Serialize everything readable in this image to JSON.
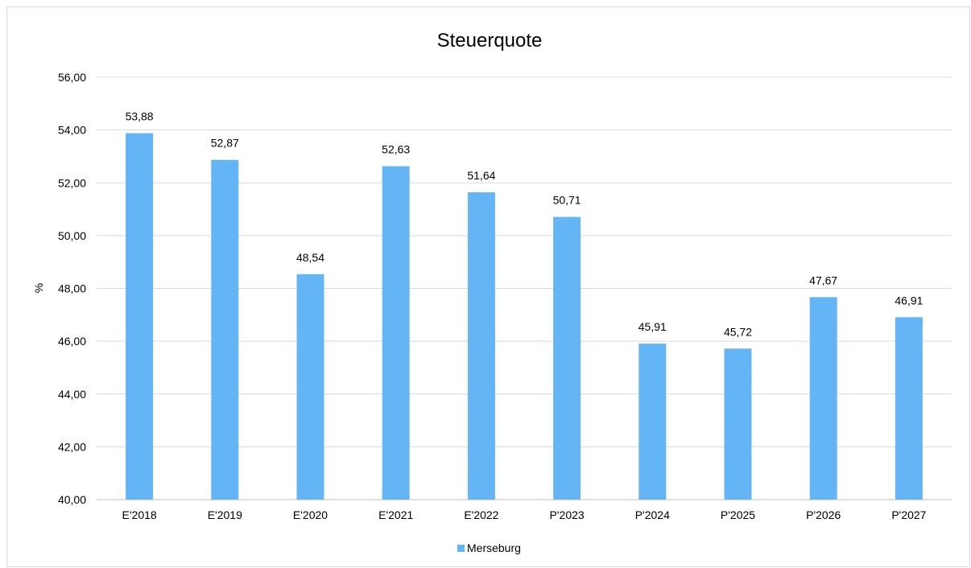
{
  "chart_data": {
    "type": "bar",
    "title": "Steuerquote",
    "xlabel": "",
    "ylabel": "%",
    "ylim": [
      40,
      56
    ],
    "ytick_step": 2,
    "yticks": [
      "40,00",
      "42,00",
      "44,00",
      "46,00",
      "48,00",
      "50,00",
      "52,00",
      "54,00",
      "56,00"
    ],
    "categories": [
      "E'2018",
      "E'2019",
      "E'2020",
      "E'2021",
      "E'2022",
      "P'2023",
      "P'2024",
      "P'2025",
      "P'2026",
      "P'2027"
    ],
    "series": [
      {
        "name": "Merseburg",
        "color": "#64b5f6",
        "values": [
          53.88,
          52.87,
          48.54,
          52.63,
          51.64,
          50.71,
          45.91,
          45.72,
          47.67,
          46.91
        ],
        "labels": [
          "53,88",
          "52,87",
          "48,54",
          "52,63",
          "51,64",
          "50,71",
          "45,91",
          "45,72",
          "47,67",
          "46,91"
        ]
      }
    ],
    "grid": true,
    "legend": "bottom"
  }
}
